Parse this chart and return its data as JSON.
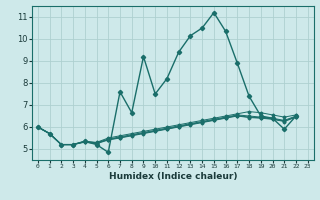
{
  "title": "",
  "xlabel": "Humidex (Indice chaleur)",
  "bg_color": "#cee9ea",
  "grid_color": "#aed0d0",
  "line_color": "#1a6e6a",
  "xlim": [
    -0.5,
    23.5
  ],
  "ylim": [
    4.5,
    11.5
  ],
  "yticks": [
    5,
    6,
    7,
    8,
    9,
    10,
    11
  ],
  "xticks": [
    0,
    1,
    2,
    3,
    4,
    5,
    6,
    7,
    8,
    9,
    10,
    11,
    12,
    13,
    14,
    15,
    16,
    17,
    18,
    19,
    20,
    21,
    22,
    23
  ],
  "series_main": [
    6.0,
    5.7,
    5.2,
    5.2,
    5.35,
    5.2,
    4.85,
    7.6,
    6.65,
    9.2,
    7.5,
    8.2,
    9.4,
    10.15,
    10.5,
    11.2,
    10.35,
    8.9,
    7.4,
    6.5,
    6.4,
    5.9,
    6.5
  ],
  "series_linear": [
    [
      6.0,
      5.7,
      5.2,
      5.2,
      5.35,
      5.3,
      5.5,
      5.6,
      5.7,
      5.8,
      5.9,
      6.0,
      6.1,
      6.2,
      6.3,
      6.4,
      6.5,
      6.6,
      6.7,
      6.65,
      6.55,
      6.45,
      6.55
    ],
    [
      6.0,
      5.7,
      5.2,
      5.2,
      5.35,
      5.28,
      5.45,
      5.55,
      5.65,
      5.75,
      5.85,
      5.95,
      6.05,
      6.15,
      6.25,
      6.35,
      6.45,
      6.55,
      6.5,
      6.45,
      6.4,
      6.3,
      6.5
    ],
    [
      6.0,
      5.7,
      5.2,
      5.2,
      5.33,
      5.26,
      5.43,
      5.52,
      5.62,
      5.72,
      5.82,
      5.92,
      6.02,
      6.12,
      6.22,
      6.32,
      6.42,
      6.52,
      6.45,
      6.42,
      6.37,
      6.27,
      6.47
    ],
    [
      6.0,
      5.7,
      5.2,
      5.2,
      5.31,
      5.24,
      5.41,
      5.5,
      5.6,
      5.7,
      5.8,
      5.9,
      6.0,
      6.1,
      6.2,
      6.3,
      6.4,
      6.5,
      6.43,
      6.4,
      6.35,
      6.25,
      6.45
    ]
  ]
}
